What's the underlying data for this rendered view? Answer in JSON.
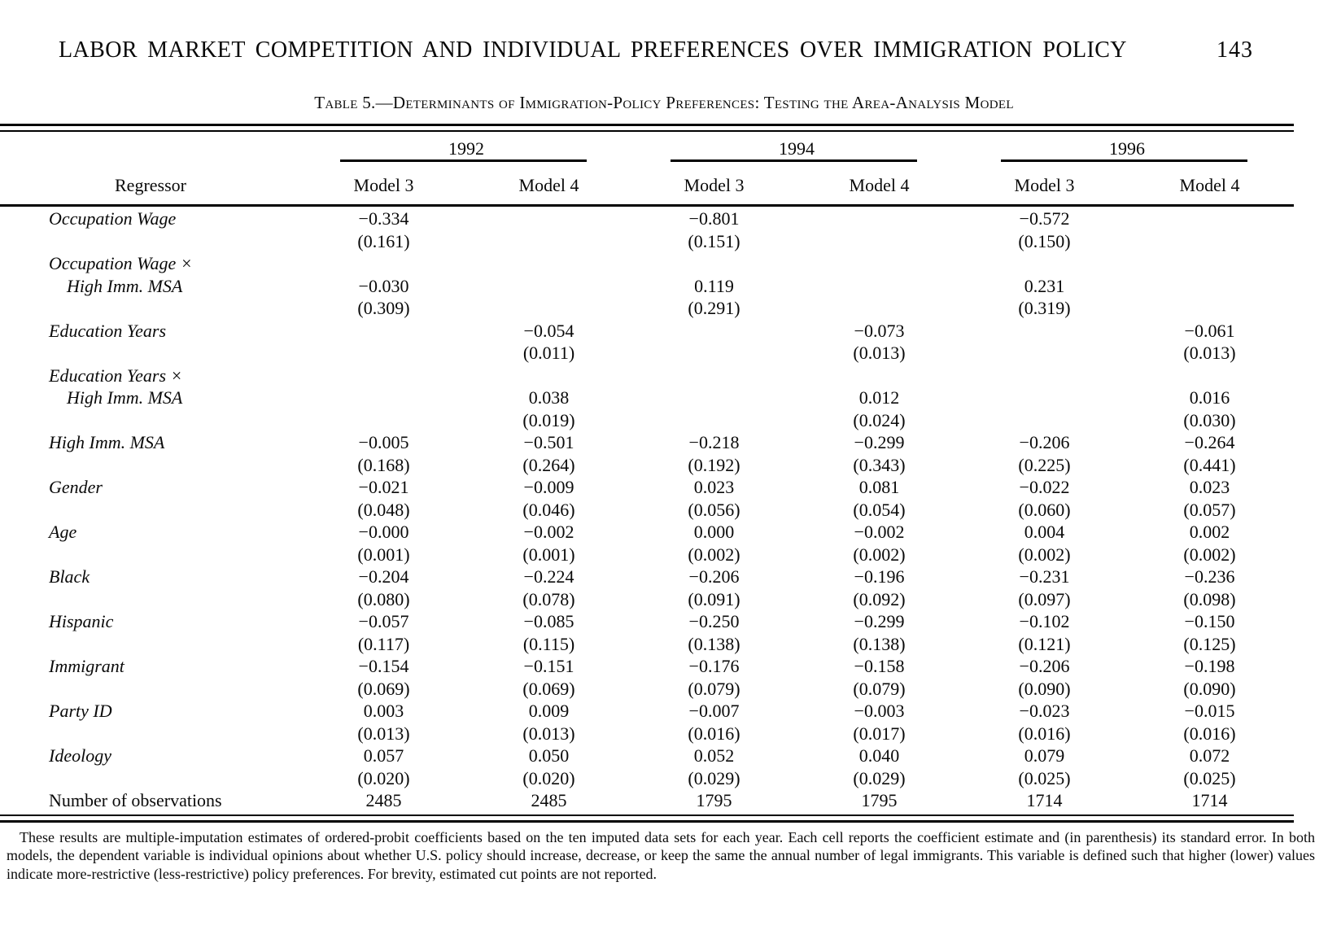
{
  "page": {
    "running_head": "LABOR MARKET COMPETITION AND INDIVIDUAL PREFERENCES OVER IMMIGRATION POLICY",
    "page_number": "143"
  },
  "table": {
    "caption": "Table 5.—Determinants of Immigration-Policy Preferences: Testing the Area-Analysis Model",
    "regressor_header": "Regressor",
    "column_groups": [
      {
        "year": "1992",
        "models": [
          "Model 3",
          "Model 4"
        ]
      },
      {
        "year": "1994",
        "models": [
          "Model 3",
          "Model 4"
        ]
      },
      {
        "year": "1996",
        "models": [
          "Model 3",
          "Model 4"
        ]
      }
    ],
    "rows": [
      {
        "label_lines": [
          "Occupation Wage"
        ],
        "italic": true,
        "has_se": true,
        "cells": [
          {
            "coef": "−0.334",
            "se": "(0.161)"
          },
          null,
          {
            "coef": "−0.801",
            "se": "(0.151)"
          },
          null,
          {
            "coef": "−0.572",
            "se": "(0.150)"
          },
          null
        ]
      },
      {
        "label_lines": [
          "Occupation Wage ×",
          "High Imm. MSA"
        ],
        "italic": true,
        "has_se": true,
        "cells": [
          {
            "coef": "−0.030",
            "se": "(0.309)"
          },
          null,
          {
            "coef": "0.119",
            "se": "(0.291)"
          },
          null,
          {
            "coef": "0.231",
            "se": "(0.319)"
          },
          null
        ]
      },
      {
        "label_lines": [
          "Education Years"
        ],
        "italic": true,
        "has_se": true,
        "cells": [
          null,
          {
            "coef": "−0.054",
            "se": "(0.011)"
          },
          null,
          {
            "coef": "−0.073",
            "se": "(0.013)"
          },
          null,
          {
            "coef": "−0.061",
            "se": "(0.013)"
          }
        ]
      },
      {
        "label_lines": [
          "Education Years ×",
          "High Imm. MSA"
        ],
        "italic": true,
        "has_se": true,
        "cells": [
          null,
          {
            "coef": "0.038",
            "se": "(0.019)"
          },
          null,
          {
            "coef": "0.012",
            "se": "(0.024)"
          },
          null,
          {
            "coef": "0.016",
            "se": "(0.030)"
          }
        ]
      },
      {
        "label_lines": [
          "High Imm. MSA"
        ],
        "italic": true,
        "has_se": true,
        "cells": [
          {
            "coef": "−0.005",
            "se": "(0.168)"
          },
          {
            "coef": "−0.501",
            "se": "(0.264)"
          },
          {
            "coef": "−0.218",
            "se": "(0.192)"
          },
          {
            "coef": "−0.299",
            "se": "(0.343)"
          },
          {
            "coef": "−0.206",
            "se": "(0.225)"
          },
          {
            "coef": "−0.264",
            "se": "(0.441)"
          }
        ]
      },
      {
        "label_lines": [
          "Gender"
        ],
        "italic": true,
        "has_se": true,
        "cells": [
          {
            "coef": "−0.021",
            "se": "(0.048)"
          },
          {
            "coef": "−0.009",
            "se": "(0.046)"
          },
          {
            "coef": "0.023",
            "se": "(0.056)"
          },
          {
            "coef": "0.081",
            "se": "(0.054)"
          },
          {
            "coef": "−0.022",
            "se": "(0.060)"
          },
          {
            "coef": "0.023",
            "se": "(0.057)"
          }
        ]
      },
      {
        "label_lines": [
          "Age"
        ],
        "italic": true,
        "has_se": true,
        "cells": [
          {
            "coef": "−0.000",
            "se": "(0.001)"
          },
          {
            "coef": "−0.002",
            "se": "(0.001)"
          },
          {
            "coef": "0.000",
            "se": "(0.002)"
          },
          {
            "coef": "−0.002",
            "se": "(0.002)"
          },
          {
            "coef": "0.004",
            "se": "(0.002)"
          },
          {
            "coef": "0.002",
            "se": "(0.002)"
          }
        ]
      },
      {
        "label_lines": [
          "Black"
        ],
        "italic": true,
        "has_se": true,
        "cells": [
          {
            "coef": "−0.204",
            "se": "(0.080)"
          },
          {
            "coef": "−0.224",
            "se": "(0.078)"
          },
          {
            "coef": "−0.206",
            "se": "(0.091)"
          },
          {
            "coef": "−0.196",
            "se": "(0.092)"
          },
          {
            "coef": "−0.231",
            "se": "(0.097)"
          },
          {
            "coef": "−0.236",
            "se": "(0.098)"
          }
        ]
      },
      {
        "label_lines": [
          "Hispanic"
        ],
        "italic": true,
        "has_se": true,
        "cells": [
          {
            "coef": "−0.057",
            "se": "(0.117)"
          },
          {
            "coef": "−0.085",
            "se": "(0.115)"
          },
          {
            "coef": "−0.250",
            "se": "(0.138)"
          },
          {
            "coef": "−0.299",
            "se": "(0.138)"
          },
          {
            "coef": "−0.102",
            "se": "(0.121)"
          },
          {
            "coef": "−0.150",
            "se": "(0.125)"
          }
        ]
      },
      {
        "label_lines": [
          "Immigrant"
        ],
        "italic": true,
        "has_se": true,
        "cells": [
          {
            "coef": "−0.154",
            "se": "(0.069)"
          },
          {
            "coef": "−0.151",
            "se": "(0.069)"
          },
          {
            "coef": "−0.176",
            "se": "(0.079)"
          },
          {
            "coef": "−0.158",
            "se": "(0.079)"
          },
          {
            "coef": "−0.206",
            "se": "(0.090)"
          },
          {
            "coef": "−0.198",
            "se": "(0.090)"
          }
        ]
      },
      {
        "label_lines": [
          "Party ID"
        ],
        "italic": true,
        "has_se": true,
        "cells": [
          {
            "coef": "0.003",
            "se": "(0.013)"
          },
          {
            "coef": "0.009",
            "se": "(0.013)"
          },
          {
            "coef": "−0.007",
            "se": "(0.016)"
          },
          {
            "coef": "−0.003",
            "se": "(0.017)"
          },
          {
            "coef": "−0.023",
            "se": "(0.016)"
          },
          {
            "coef": "−0.015",
            "se": "(0.016)"
          }
        ]
      },
      {
        "label_lines": [
          "Ideology"
        ],
        "italic": true,
        "has_se": true,
        "cells": [
          {
            "coef": "0.057",
            "se": "(0.020)"
          },
          {
            "coef": "0.050",
            "se": "(0.020)"
          },
          {
            "coef": "0.052",
            "se": "(0.029)"
          },
          {
            "coef": "0.040",
            "se": "(0.029)"
          },
          {
            "coef": "0.079",
            "se": "(0.025)"
          },
          {
            "coef": "0.072",
            "se": "(0.025)"
          }
        ]
      },
      {
        "label_lines": [
          "Number of observations"
        ],
        "italic": false,
        "has_se": false,
        "cells": [
          {
            "coef": "2485"
          },
          {
            "coef": "2485"
          },
          {
            "coef": "1795"
          },
          {
            "coef": "1795"
          },
          {
            "coef": "1714"
          },
          {
            "coef": "1714"
          }
        ]
      }
    ]
  },
  "footnote": "These results are multiple-imputation estimates of ordered-probit coefficients based on the ten imputed data sets for each year. Each cell reports the coefficient estimate and (in parenthesis) its standard error. In both models, the dependent variable is individual opinions about whether U.S. policy should increase, decrease, or keep the same the annual number of legal immigrants. This variable is defined such that higher (lower) values indicate more-restrictive (less-restrictive) policy preferences. For brevity, estimated cut points are not reported."
}
